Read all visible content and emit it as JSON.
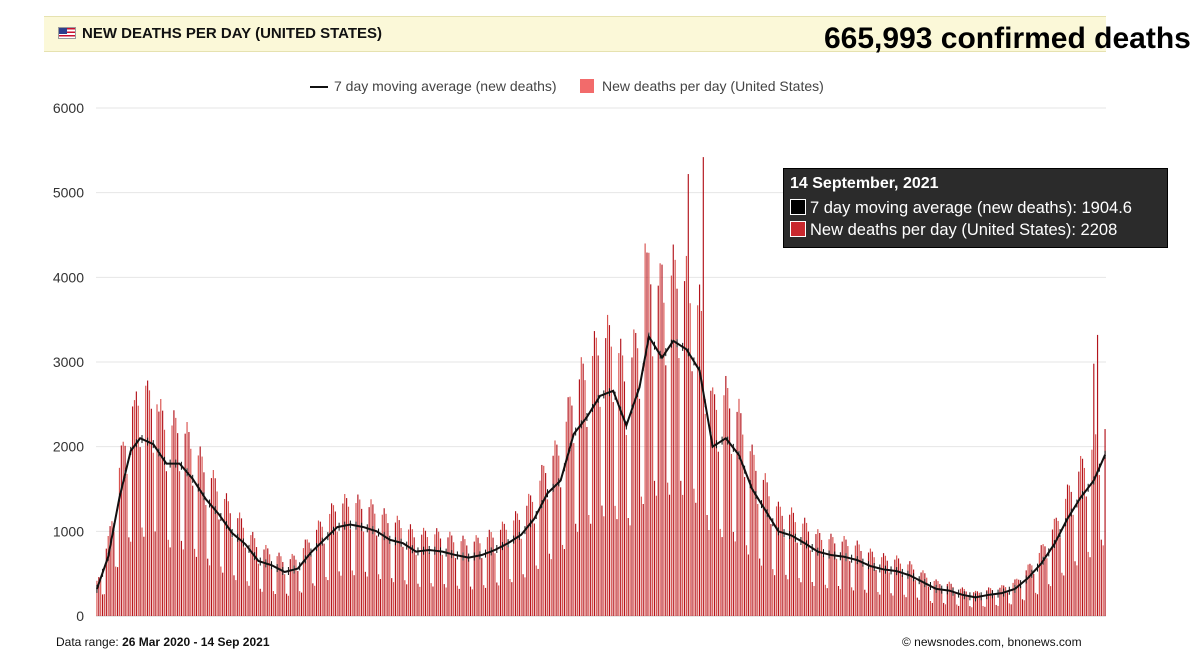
{
  "header": {
    "title": "NEW DEATHS PER DAY (UNITED STATES)",
    "total_deaths": "665,993 confirmed deaths",
    "flag_icon": "us-flag-icon"
  },
  "legend": {
    "line_label": "7 day moving average (new deaths)",
    "bar_label": "New deaths per day (United States)"
  },
  "tooltip": {
    "date": "14 September, 2021",
    "line_text": "7 day moving average (new deaths): 1904.6",
    "bar_text": "New deaths per day (United States): 2208"
  },
  "footer": {
    "range_label": "Data range:",
    "range_value": "26 Mar 2020  -  14 Sep 2021",
    "credit": "©  newsnodes.com, bnonews.com"
  },
  "colors": {
    "bar": "#b3141c",
    "bar_light": "#d9534f",
    "line": "#111111",
    "header_bg": "#fbf8d8",
    "legend_bar": "#f26b6b",
    "grid": "#e6e6e6"
  },
  "chart_data": {
    "type": "bar",
    "title": "NEW DEATHS PER DAY (UNITED STATES)",
    "xlabel": "",
    "ylabel": "",
    "ylim": [
      0,
      6000
    ],
    "yticks": [
      0,
      1000,
      2000,
      3000,
      4000,
      5000,
      6000
    ],
    "x_start": "2020-03-26",
    "x_end": "2021-09-14",
    "grid": true,
    "legend_position": "top",
    "series": [
      {
        "name": "7 day moving average (new deaths)",
        "kind": "line",
        "note": "anchor dates with weekly values",
        "points": [
          [
            "2020-03-26",
            320
          ],
          [
            "2020-04-01",
            700
          ],
          [
            "2020-04-07",
            1400
          ],
          [
            "2020-04-13",
            1950
          ],
          [
            "2020-04-18",
            2100
          ],
          [
            "2020-04-25",
            2030
          ],
          [
            "2020-05-02",
            1800
          ],
          [
            "2020-05-09",
            1800
          ],
          [
            "2020-05-16",
            1620
          ],
          [
            "2020-05-23",
            1380
          ],
          [
            "2020-05-30",
            1200
          ],
          [
            "2020-06-06",
            980
          ],
          [
            "2020-06-13",
            850
          ],
          [
            "2020-06-20",
            650
          ],
          [
            "2020-06-27",
            600
          ],
          [
            "2020-07-04",
            520
          ],
          [
            "2020-07-11",
            560
          ],
          [
            "2020-07-18",
            750
          ],
          [
            "2020-07-25",
            900
          ],
          [
            "2020-08-01",
            1050
          ],
          [
            "2020-08-08",
            1080
          ],
          [
            "2020-08-15",
            1050
          ],
          [
            "2020-08-22",
            1000
          ],
          [
            "2020-08-29",
            900
          ],
          [
            "2020-09-05",
            860
          ],
          [
            "2020-09-12",
            760
          ],
          [
            "2020-09-19",
            780
          ],
          [
            "2020-09-26",
            760
          ],
          [
            "2020-10-03",
            720
          ],
          [
            "2020-10-10",
            690
          ],
          [
            "2020-10-17",
            720
          ],
          [
            "2020-10-24",
            780
          ],
          [
            "2020-10-31",
            860
          ],
          [
            "2020-11-07",
            960
          ],
          [
            "2020-11-14",
            1150
          ],
          [
            "2020-11-21",
            1450
          ],
          [
            "2020-11-28",
            1600
          ],
          [
            "2020-12-05",
            2150
          ],
          [
            "2020-12-12",
            2350
          ],
          [
            "2020-12-19",
            2600
          ],
          [
            "2020-12-26",
            2660
          ],
          [
            "2021-01-02",
            2250
          ],
          [
            "2021-01-09",
            2700
          ],
          [
            "2021-01-14",
            3300
          ],
          [
            "2021-01-21",
            3050
          ],
          [
            "2021-01-27",
            3250
          ],
          [
            "2021-02-03",
            3150
          ],
          [
            "2021-02-10",
            2900
          ],
          [
            "2021-02-17",
            2000
          ],
          [
            "2021-02-24",
            2100
          ],
          [
            "2021-03-03",
            1900
          ],
          [
            "2021-03-10",
            1500
          ],
          [
            "2021-03-17",
            1250
          ],
          [
            "2021-03-24",
            1000
          ],
          [
            "2021-03-31",
            950
          ],
          [
            "2021-04-07",
            860
          ],
          [
            "2021-04-14",
            760
          ],
          [
            "2021-04-21",
            720
          ],
          [
            "2021-04-28",
            700
          ],
          [
            "2021-05-05",
            660
          ],
          [
            "2021-05-12",
            590
          ],
          [
            "2021-05-19",
            550
          ],
          [
            "2021-05-26",
            530
          ],
          [
            "2021-06-02",
            480
          ],
          [
            "2021-06-09",
            400
          ],
          [
            "2021-06-16",
            320
          ],
          [
            "2021-06-23",
            300
          ],
          [
            "2021-06-30",
            250
          ],
          [
            "2021-07-07",
            220
          ],
          [
            "2021-07-14",
            250
          ],
          [
            "2021-07-21",
            270
          ],
          [
            "2021-07-28",
            320
          ],
          [
            "2021-08-04",
            450
          ],
          [
            "2021-08-11",
            620
          ],
          [
            "2021-08-18",
            850
          ],
          [
            "2021-08-25",
            1150
          ],
          [
            "2021-09-01",
            1400
          ],
          [
            "2021-09-08",
            1600
          ],
          [
            "2021-09-14",
            1904.6
          ]
        ]
      },
      {
        "name": "New deaths per day (United States)",
        "kind": "bar",
        "note": "daily values follow the moving average with weekly reporting cycle; notable values listed",
        "peaks": [
          [
            "2020-04-15",
            2550
          ],
          [
            "2020-04-21",
            2720
          ],
          [
            "2020-04-27",
            2500
          ],
          [
            "2021-01-12",
            4400
          ],
          [
            "2021-01-21",
            4150
          ],
          [
            "2021-02-04",
            5220
          ],
          [
            "2021-02-12",
            5420
          ],
          [
            "2021-09-08",
            2980
          ],
          [
            "2021-09-10",
            3320
          ],
          [
            "2021-09-14",
            2208
          ]
        ]
      }
    ]
  }
}
